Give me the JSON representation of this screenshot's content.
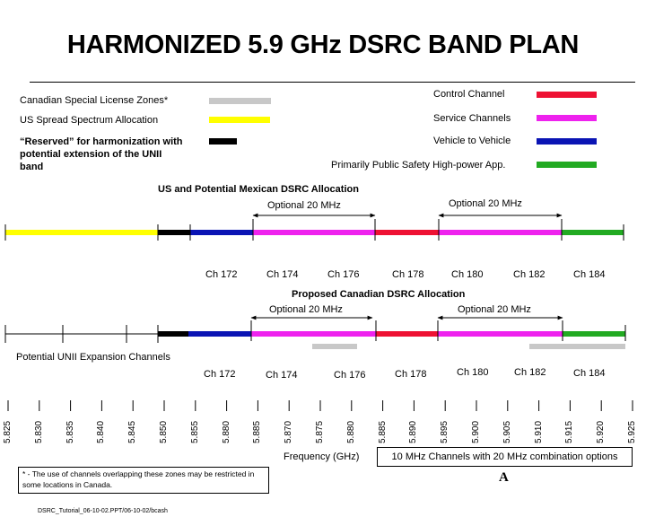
{
  "title": "HARMONIZED 5.9 GHz DSRC BAND PLAN",
  "legend_left": {
    "canadian": "Canadian Special License  Zones*",
    "us_spread": "US Spread Spectrum Allocation",
    "reserved": "“Reserved” for harmonization with potential extension of the UNII band"
  },
  "legend_right": {
    "control": "Control Channel",
    "service": "Service Channels",
    "v2v": "Vehicle to Vehicle",
    "public_safety": "Primarily Public Safety High-power App."
  },
  "colors": {
    "canadian_zone": "#c8c8c8",
    "us_spread": "#ffff00",
    "reserved": "#000000",
    "control": "#ee1133",
    "service": "#ee22ee",
    "v2v": "#0a14b4",
    "public_safety": "#22aa22"
  },
  "us_section": {
    "title": "US and Potential Mexican DSRC Allocation",
    "optional_left": "Optional 20 MHz",
    "optional_right": "Optional 20 MHz",
    "channels": [
      "Ch 172",
      "Ch 174",
      "Ch 176",
      "Ch 178",
      "Ch 180",
      "Ch 182",
      "Ch 184"
    ]
  },
  "canada_section": {
    "title": "Proposed Canadian DSRC Allocation",
    "optional_left": "Optional 20 MHz",
    "optional_right": "Optional 20 MHz",
    "unii_label": "Potential UNII Expansion Channels",
    "channels": [
      "Ch 172",
      "Ch 174",
      "Ch 176",
      "Ch 178",
      "Ch 180",
      "Ch 182",
      "Ch 184"
    ]
  },
  "frequency_ticks": [
    "5.825",
    "5.830",
    "5.835",
    "5.840",
    "5.845",
    "5.850",
    "5.855",
    "5.880",
    "5.885",
    "5.870",
    "5.875",
    "5.880",
    "5.885",
    "5.890",
    "5.895",
    "5.900",
    "5.905",
    "5.910",
    "5.915",
    "5.920",
    "5.925"
  ],
  "axis_label": "Frequency (GHz)",
  "box_note": "10 MHz Channels with 20 MHz combination options",
  "footnote": "* - The use of channels overlapping these zones may be restricted in some locations in Canada.",
  "letter": "A",
  "filename": "DSRC_Tutorial_06-10-02.PPT/06-10-02/bcash"
}
